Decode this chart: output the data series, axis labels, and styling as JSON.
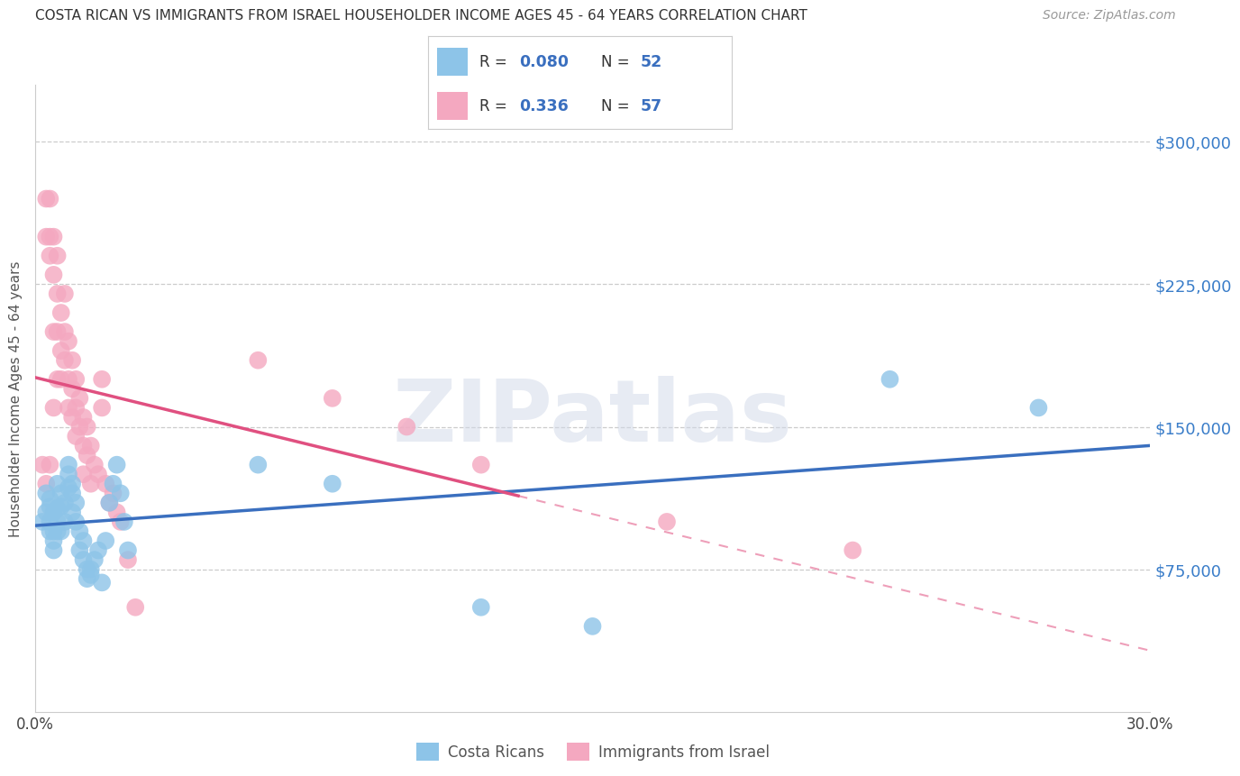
{
  "title": "COSTA RICAN VS IMMIGRANTS FROM ISRAEL HOUSEHOLDER INCOME AGES 45 - 64 YEARS CORRELATION CHART",
  "source": "Source: ZipAtlas.com",
  "ylabel": "Householder Income Ages 45 - 64 years",
  "x_min": 0.0,
  "x_max": 0.3,
  "y_min": 0,
  "y_max": 330000,
  "y_ticks": [
    75000,
    150000,
    225000,
    300000
  ],
  "y_tick_labels": [
    "$75,000",
    "$150,000",
    "$225,000",
    "$300,000"
  ],
  "x_ticks": [
    0.0,
    0.05,
    0.1,
    0.15,
    0.2,
    0.25,
    0.3
  ],
  "x_tick_labels": [
    "0.0%",
    "",
    "",
    "",
    "",
    "",
    "30.0%"
  ],
  "legend_r1": "0.080",
  "legend_n1": "52",
  "legend_r2": "0.336",
  "legend_n2": "57",
  "color_blue": "#8dc4e8",
  "color_pink": "#f4a8c0",
  "line_blue": "#3a6fbf",
  "line_pink": "#e05080",
  "watermark": "ZIPatlas",
  "blue_x": [
    0.002,
    0.003,
    0.003,
    0.004,
    0.004,
    0.004,
    0.004,
    0.005,
    0.005,
    0.005,
    0.005,
    0.006,
    0.006,
    0.006,
    0.006,
    0.007,
    0.007,
    0.007,
    0.008,
    0.008,
    0.009,
    0.009,
    0.009,
    0.01,
    0.01,
    0.01,
    0.011,
    0.011,
    0.012,
    0.012,
    0.013,
    0.013,
    0.014,
    0.014,
    0.015,
    0.015,
    0.016,
    0.017,
    0.018,
    0.019,
    0.02,
    0.021,
    0.022,
    0.023,
    0.024,
    0.025,
    0.06,
    0.08,
    0.12,
    0.15,
    0.23,
    0.27
  ],
  "blue_y": [
    100000,
    115000,
    105000,
    108000,
    95000,
    100000,
    112000,
    105000,
    95000,
    90000,
    85000,
    107000,
    100000,
    95000,
    120000,
    108000,
    95000,
    115000,
    100000,
    110000,
    125000,
    118000,
    130000,
    115000,
    105000,
    120000,
    110000,
    100000,
    95000,
    85000,
    90000,
    80000,
    75000,
    70000,
    75000,
    72000,
    80000,
    85000,
    68000,
    90000,
    110000,
    120000,
    130000,
    115000,
    100000,
    85000,
    130000,
    120000,
    55000,
    45000,
    175000,
    160000
  ],
  "pink_x": [
    0.002,
    0.003,
    0.003,
    0.003,
    0.004,
    0.004,
    0.004,
    0.004,
    0.005,
    0.005,
    0.005,
    0.005,
    0.006,
    0.006,
    0.006,
    0.006,
    0.007,
    0.007,
    0.007,
    0.008,
    0.008,
    0.008,
    0.009,
    0.009,
    0.009,
    0.01,
    0.01,
    0.01,
    0.011,
    0.011,
    0.011,
    0.012,
    0.012,
    0.013,
    0.013,
    0.013,
    0.014,
    0.014,
    0.015,
    0.015,
    0.016,
    0.017,
    0.018,
    0.018,
    0.019,
    0.02,
    0.021,
    0.022,
    0.023,
    0.025,
    0.027,
    0.06,
    0.08,
    0.1,
    0.12,
    0.17,
    0.22
  ],
  "pink_y": [
    130000,
    270000,
    250000,
    120000,
    270000,
    250000,
    240000,
    130000,
    250000,
    230000,
    200000,
    160000,
    240000,
    220000,
    200000,
    175000,
    210000,
    190000,
    175000,
    220000,
    200000,
    185000,
    195000,
    175000,
    160000,
    185000,
    170000,
    155000,
    175000,
    160000,
    145000,
    165000,
    150000,
    155000,
    140000,
    125000,
    150000,
    135000,
    140000,
    120000,
    130000,
    125000,
    175000,
    160000,
    120000,
    110000,
    115000,
    105000,
    100000,
    80000,
    55000,
    185000,
    165000,
    150000,
    130000,
    100000,
    85000
  ]
}
